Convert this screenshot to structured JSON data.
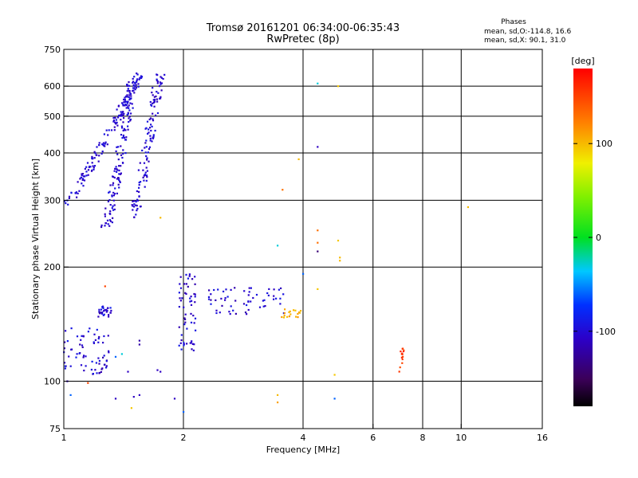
{
  "chart_data": {
    "type": "scatter",
    "title": "Tromsø 20161201 06:34:00-06:35:43",
    "subtitle": "RwPretec (8p)",
    "xlabel": "Frequency [MHz]",
    "ylabel": "Stationary phase Virtual Height [km]",
    "x_scale": "log",
    "y_scale": "log",
    "xlim": [
      1,
      16
    ],
    "ylim": [
      75,
      750
    ],
    "x_ticks": [
      1,
      2,
      4,
      6,
      8,
      10,
      16
    ],
    "y_ticks": [
      75,
      100,
      200,
      300,
      400,
      500,
      600,
      750
    ],
    "x_grid": [
      2,
      4,
      6,
      8,
      10
    ],
    "y_grid": [
      100,
      200,
      300,
      400,
      500,
      600
    ],
    "grid": true,
    "stats": {
      "heading": "Phases",
      "line_o": "mean, sd,O:-114.8, 16.6",
      "line_x": "mean, sd,X:  90.1, 31.0"
    },
    "colorbar": {
      "label": "[deg]",
      "min": -180,
      "max": 180,
      "ticks": [
        100,
        0,
        -100
      ]
    },
    "clusters": [
      {
        "n": 150,
        "x": [
          1.0,
          1.55
        ],
        "y": [
          285,
          640
        ],
        "phase": [
          -115,
          -90
        ]
      },
      {
        "n": 140,
        "x": [
          1.28,
          1.5
        ],
        "y": [
          255,
          650
        ],
        "phase": [
          -115,
          -90
        ]
      },
      {
        "n": 120,
        "x": [
          1.5,
          1.75
        ],
        "y": [
          270,
          660
        ],
        "phase": [
          -115,
          -90
        ]
      },
      {
        "n": 70,
        "x": [
          1.0,
          1.3
        ],
        "y": [
          104,
          138
        ],
        "phase": [
          -120,
          -85
        ]
      },
      {
        "n": 30,
        "x": [
          1.22,
          1.32
        ],
        "y": [
          148,
          158
        ],
        "phase": [
          -120,
          -85
        ]
      },
      {
        "n": 60,
        "x": [
          1.95,
          2.15
        ],
        "y": [
          118,
          192
        ],
        "phase": [
          -120,
          -85
        ]
      },
      {
        "n": 60,
        "x": [
          2.3,
          3.6
        ],
        "y": [
          150,
          178
        ],
        "phase": [
          -120,
          -85
        ]
      },
      {
        "n": 18,
        "x": [
          3.5,
          3.95
        ],
        "y": [
          147,
          155
        ],
        "phase": [
          95,
          115
        ]
      },
      {
        "n": 14,
        "x": [
          6.95,
          7.2
        ],
        "y": [
          106,
          124
        ],
        "phase": [
          145,
          170
        ]
      }
    ],
    "points": [
      {
        "x": 4.35,
        "y": 610,
        "phase": -30
      },
      {
        "x": 4.35,
        "y": 415,
        "phase": -110
      },
      {
        "x": 4.9,
        "y": 600,
        "phase": 95
      },
      {
        "x": 3.9,
        "y": 385,
        "phase": 100
      },
      {
        "x": 3.55,
        "y": 320,
        "phase": 130
      },
      {
        "x": 4.35,
        "y": 250,
        "phase": 130
      },
      {
        "x": 4.35,
        "y": 232,
        "phase": 130
      },
      {
        "x": 3.45,
        "y": 228,
        "phase": -30
      },
      {
        "x": 4.35,
        "y": 220,
        "phase": -140
      },
      {
        "x": 4.9,
        "y": 235,
        "phase": 95
      },
      {
        "x": 4.95,
        "y": 212,
        "phase": 100
      },
      {
        "x": 4.95,
        "y": 208,
        "phase": 100
      },
      {
        "x": 4.0,
        "y": 192,
        "phase": -60
      },
      {
        "x": 4.35,
        "y": 175,
        "phase": 95
      },
      {
        "x": 10.4,
        "y": 288,
        "phase": 100
      },
      {
        "x": 4.8,
        "y": 104,
        "phase": 95
      },
      {
        "x": 4.8,
        "y": 90,
        "phase": -60
      },
      {
        "x": 3.45,
        "y": 92,
        "phase": 100
      },
      {
        "x": 3.45,
        "y": 88,
        "phase": 110
      },
      {
        "x": 2.0,
        "y": 83,
        "phase": -60
      },
      {
        "x": 1.9,
        "y": 90,
        "phase": -110
      },
      {
        "x": 1.55,
        "y": 92,
        "phase": -110
      },
      {
        "x": 1.5,
        "y": 91,
        "phase": -110
      },
      {
        "x": 1.35,
        "y": 90,
        "phase": -110
      },
      {
        "x": 1.02,
        "y": 100,
        "phase": -110
      },
      {
        "x": 1.04,
        "y": 92,
        "phase": -60
      },
      {
        "x": 1.15,
        "y": 99,
        "phase": 150
      },
      {
        "x": 1.48,
        "y": 85,
        "phase": 95
      },
      {
        "x": 1.45,
        "y": 106,
        "phase": -110
      },
      {
        "x": 1.55,
        "y": 128,
        "phase": -120
      },
      {
        "x": 1.55,
        "y": 125,
        "phase": -120
      },
      {
        "x": 1.4,
        "y": 118,
        "phase": -30
      },
      {
        "x": 1.35,
        "y": 116,
        "phase": -60
      },
      {
        "x": 1.72,
        "y": 107,
        "phase": -110
      },
      {
        "x": 1.75,
        "y": 106,
        "phase": -110
      },
      {
        "x": 1.27,
        "y": 178,
        "phase": 150
      },
      {
        "x": 1.75,
        "y": 270,
        "phase": 100
      }
    ]
  }
}
